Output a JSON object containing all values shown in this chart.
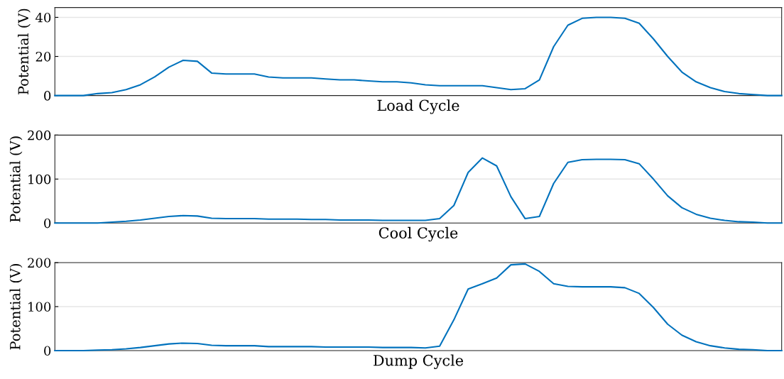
{
  "chart_data": [
    {
      "type": "line",
      "xlabel": "Load Cycle",
      "ylabel": "Potential (V)",
      "ylim": [
        0,
        45
      ],
      "yticks": [
        0,
        20,
        40
      ],
      "grid": "y",
      "tick_labels": "y",
      "categories": [
        null,
        null,
        null,
        null,
        null,
        null,
        null,
        null,
        null,
        null,
        null,
        null,
        null,
        null,
        null,
        null,
        null,
        null,
        null,
        null,
        null,
        null,
        null,
        null,
        null,
        null,
        null,
        null,
        null,
        null,
        null,
        null,
        null,
        null,
        null,
        null,
        null,
        null,
        null,
        null,
        null,
        null,
        null,
        null,
        null,
        null,
        null,
        null,
        null,
        null,
        null,
        null
      ],
      "series": [
        {
          "color": "#0072bd",
          "values": [
            0,
            0,
            0,
            1,
            1.5,
            3,
            5.5,
            9.5,
            14.5,
            18,
            17.5,
            11.5,
            11,
            11,
            11,
            9.5,
            9,
            9,
            9,
            8.5,
            8,
            8,
            7.5,
            7,
            7,
            6.5,
            5.5,
            5,
            5,
            5,
            5,
            4,
            3,
            3.5,
            8,
            25,
            36,
            39.5,
            40,
            40,
            39.5,
            37,
            29,
            20,
            12,
            7,
            4,
            2,
            1,
            0.5,
            0,
            0
          ]
        }
      ]
    },
    {
      "type": "line",
      "xlabel": "Cool Cycle",
      "ylabel": "Potential (V)",
      "ylim": [
        0,
        200
      ],
      "yticks": [
        0,
        100,
        200
      ],
      "grid": "y",
      "tick_labels": "y",
      "categories": [
        null,
        null,
        null,
        null,
        null,
        null,
        null,
        null,
        null,
        null,
        null,
        null,
        null,
        null,
        null,
        null,
        null,
        null,
        null,
        null,
        null,
        null,
        null,
        null,
        null,
        null,
        null,
        null,
        null,
        null,
        null,
        null,
        null,
        null,
        null,
        null,
        null,
        null,
        null,
        null,
        null,
        null,
        null,
        null,
        null,
        null,
        null,
        null,
        null,
        null,
        null,
        null
      ],
      "series": [
        {
          "color": "#0072bd",
          "values": [
            0,
            0,
            0,
            0,
            2,
            4,
            7,
            11,
            15,
            17,
            16,
            11,
            10,
            10,
            10,
            9,
            9,
            9,
            8,
            8,
            7,
            7,
            7,
            6,
            6,
            6,
            6,
            10,
            40,
            115,
            148,
            130,
            60,
            10,
            15,
            90,
            138,
            144,
            145,
            145,
            144,
            135,
            100,
            62,
            35,
            20,
            11,
            6,
            3,
            2,
            0,
            0
          ]
        }
      ]
    },
    {
      "type": "line",
      "xlabel": "Dump Cycle",
      "ylabel": "Potential (V)",
      "ylim": [
        0,
        200
      ],
      "yticks": [
        0,
        100,
        200
      ],
      "grid": "y",
      "tick_labels": "y",
      "categories": [
        null,
        null,
        null,
        null,
        null,
        null,
        null,
        null,
        null,
        null,
        null,
        null,
        null,
        null,
        null,
        null,
        null,
        null,
        null,
        null,
        null,
        null,
        null,
        null,
        null,
        null,
        null,
        null,
        null,
        null,
        null,
        null,
        null,
        null,
        null,
        null,
        null,
        null,
        null,
        null,
        null,
        null,
        null,
        null,
        null,
        null,
        null,
        null,
        null,
        null,
        null,
        null
      ],
      "series": [
        {
          "color": "#0072bd",
          "values": [
            0,
            0,
            0,
            1,
            2,
            4,
            7,
            11,
            15,
            17,
            16,
            12,
            11,
            11,
            11,
            9,
            9,
            9,
            9,
            8,
            8,
            8,
            8,
            7,
            7,
            7,
            6,
            10,
            70,
            140,
            152,
            165,
            195,
            197,
            180,
            152,
            146,
            145,
            145,
            145,
            143,
            130,
            98,
            60,
            35,
            20,
            11,
            6,
            3,
            2,
            0,
            0
          ]
        }
      ]
    }
  ]
}
